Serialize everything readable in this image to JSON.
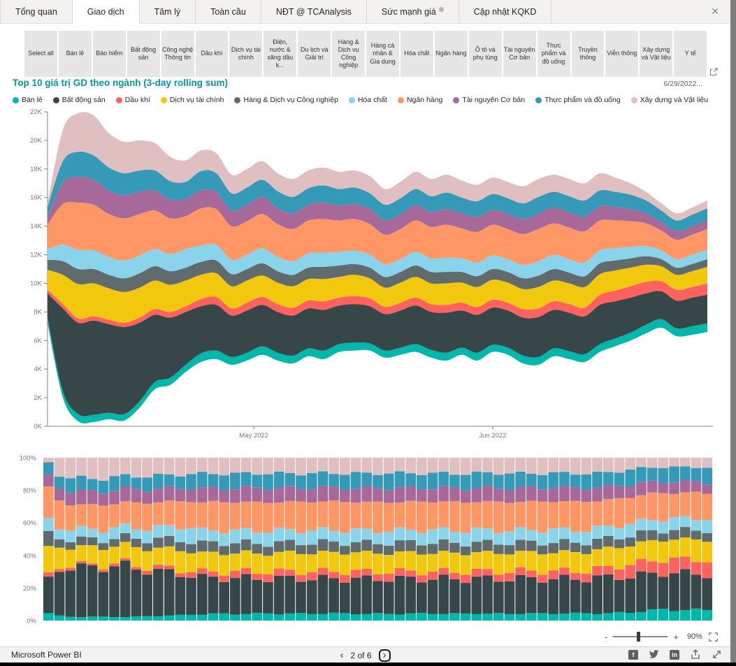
{
  "tabs": {
    "items": [
      {
        "label": "Tổng quan",
        "active": false
      },
      {
        "label": "Giao dịch",
        "active": true
      },
      {
        "label": "Tâm lý",
        "active": false
      },
      {
        "label": "Toàn cầu",
        "active": false
      },
      {
        "label": "NĐT @ TCAnalysis",
        "active": false
      },
      {
        "label": "Sức mạnh giá",
        "active": false,
        "has_info_icon": true
      },
      {
        "label": "Cập nhật KQKD",
        "active": false
      }
    ],
    "close_icon": "✕"
  },
  "filters": {
    "items": [
      "Select all",
      "Bán lẻ",
      "Bảo hiểm",
      "Bất động sản",
      "Công nghệ Thông tin",
      "Dầu khí",
      "Dịch vụ tài chính",
      "Điện, nước & xăng dầu k...",
      "Du lịch và Giải trí",
      "Hàng & Dịch vụ Công nghiệp",
      "Hàng cá nhân & Gia dụng",
      "Hóa chất",
      "Ngân hàng",
      "Ô tô và phụ tùng",
      "Tài nguyên Cơ bản",
      "Thực phẩm và đồ uống",
      "Truyền thông",
      "Viễn thông",
      "Xây dựng và Vật liệu",
      "Y tế"
    ]
  },
  "header": {
    "title": "Top 10 giá trị GD theo ngành (3-day rolling sum)",
    "title_color": "#01999B",
    "date_label": "6/29/2022..."
  },
  "chart_data": [
    {
      "type": "area",
      "subtype": "stream-stacked-area",
      "title": "Top 10 giá trị GD theo ngành (3-day rolling sum)",
      "unit": "K (thousands, as shown on y-axis)",
      "y_axis": {
        "min": 0,
        "max": 22,
        "tick_step": 2,
        "tick_suffix": "K"
      },
      "x_axis": {
        "ticks": [
          {
            "label": "May 2022",
            "fraction": 0.31
          },
          {
            "label": "Jun 2022",
            "fraction": 0.669
          }
        ]
      },
      "legend_position": "top",
      "grid": false,
      "baseline": [
        7.2,
        2.0,
        0.35,
        0.3,
        0.5,
        0.4,
        1.3,
        2.6,
        2.9,
        3.8,
        4.5,
        4.7,
        4.3,
        4.6,
        5.0,
        4.6,
        4.4,
        4.9,
        4.7,
        5.2,
        5.3,
        5.3,
        4.8,
        5.0,
        5.2,
        4.8,
        4.6,
        5.0,
        4.6,
        5.2,
        5.0,
        4.4,
        4.3,
        4.9,
        4.7,
        4.5,
        5.2,
        5.6,
        6.0,
        6.5,
        6.9,
        6.3,
        6.4,
        6.6
      ],
      "series": [
        {
          "name": "Bán lẻ",
          "color": "#01B8AA",
          "values": [
            0.4,
            0.45,
            0.5,
            0.5,
            0.45,
            0.45,
            0.45,
            0.5,
            0.5,
            0.5,
            0.6,
            0.6,
            0.55,
            0.55,
            0.6,
            0.55,
            0.55,
            0.55,
            0.6,
            0.55,
            0.55,
            0.5,
            0.5,
            0.5,
            0.55,
            0.55,
            0.55,
            0.5,
            0.55,
            0.5,
            0.5,
            0.55,
            0.55,
            0.55,
            0.55,
            0.55,
            0.55,
            0.55,
            0.55,
            0.6,
            0.6,
            0.55,
            0.6,
            0.6
          ]
        },
        {
          "name": "Bất động sản",
          "color": "#374649",
          "values": [
            1.7,
            5.8,
            6.4,
            6.6,
            6.2,
            6.1,
            5.5,
            4.7,
            4.2,
            3.7,
            3.3,
            3.2,
            2.9,
            2.95,
            2.9,
            2.85,
            2.8,
            2.8,
            2.85,
            2.7,
            2.7,
            2.6,
            2.55,
            2.6,
            2.7,
            2.65,
            2.8,
            2.6,
            2.65,
            2.6,
            2.6,
            2.65,
            2.8,
            2.7,
            2.7,
            2.65,
            2.75,
            2.6,
            2.45,
            2.2,
            1.95,
            1.95,
            2.0,
            2.0
          ]
        },
        {
          "name": "Dầu khí",
          "color": "#FD625E",
          "values": [
            0.25,
            0.3,
            0.3,
            0.3,
            0.3,
            0.3,
            0.35,
            0.4,
            0.4,
            0.4,
            0.5,
            0.55,
            0.5,
            0.55,
            0.55,
            0.55,
            0.55,
            0.55,
            0.6,
            0.55,
            0.55,
            0.55,
            0.5,
            0.55,
            0.55,
            0.55,
            0.55,
            0.55,
            0.55,
            0.55,
            0.55,
            0.6,
            0.6,
            0.6,
            0.6,
            0.6,
            0.7,
            0.75,
            0.8,
            0.8,
            0.7,
            0.75,
            0.75,
            0.8
          ]
        },
        {
          "name": "Dịch vụ tài chính",
          "color": "#F2C80F",
          "values": [
            1.4,
            2.05,
            2.4,
            2.3,
            2.2,
            2.15,
            2.1,
            2.0,
            1.9,
            1.8,
            1.7,
            1.65,
            1.55,
            1.55,
            1.5,
            1.5,
            1.5,
            1.5,
            1.55,
            1.45,
            1.5,
            1.4,
            1.35,
            1.4,
            1.45,
            1.45,
            1.5,
            1.4,
            1.4,
            1.4,
            1.4,
            1.4,
            1.5,
            1.45,
            1.45,
            1.45,
            1.45,
            1.4,
            1.3,
            1.2,
            1.05,
            1.05,
            1.1,
            1.15
          ]
        },
        {
          "name": "Hàng & Dịch vụ Công nghiệp",
          "color": "#5F6B6D",
          "values": [
            0.7,
            0.95,
            1.05,
            1.0,
            0.95,
            0.95,
            1.0,
            1.0,
            0.95,
            0.9,
            0.9,
            0.9,
            0.85,
            0.8,
            0.85,
            0.8,
            0.8,
            0.8,
            0.85,
            0.8,
            0.75,
            0.75,
            0.75,
            0.75,
            0.8,
            0.8,
            0.8,
            0.75,
            0.75,
            0.75,
            0.75,
            0.75,
            0.8,
            0.8,
            0.75,
            0.75,
            0.75,
            0.7,
            0.65,
            0.6,
            0.5,
            0.5,
            0.5,
            0.55
          ]
        },
        {
          "name": "Hóa chất",
          "color": "#8AD4EB",
          "values": [
            0.75,
            1.15,
            1.35,
            1.3,
            1.25,
            1.25,
            1.25,
            1.2,
            1.2,
            1.3,
            1.15,
            1.1,
            1.0,
            1.0,
            1.05,
            1.0,
            0.95,
            1.0,
            1.0,
            0.95,
            0.95,
            0.9,
            0.9,
            0.9,
            0.95,
            0.95,
            1.0,
            0.95,
            0.95,
            0.95,
            0.9,
            0.95,
            1.0,
            1.0,
            0.95,
            0.95,
            0.9,
            0.85,
            0.8,
            0.7,
            0.6,
            0.6,
            0.65,
            0.65
          ]
        },
        {
          "name": "Ngân hàng",
          "color": "#FE9666",
          "values": [
            1.7,
            2.85,
            3.3,
            3.2,
            3.0,
            2.95,
            2.9,
            2.7,
            2.5,
            2.3,
            2.6,
            2.5,
            2.35,
            2.35,
            2.4,
            2.3,
            2.25,
            2.3,
            2.35,
            2.2,
            2.2,
            2.15,
            2.05,
            2.1,
            2.2,
            2.2,
            2.3,
            2.1,
            2.15,
            2.15,
            2.1,
            2.15,
            2.25,
            2.2,
            2.2,
            2.2,
            2.1,
            1.95,
            1.8,
            1.6,
            1.4,
            1.35,
            1.4,
            1.45
          ]
        },
        {
          "name": "Tài nguyên Cơ bản",
          "color": "#A66999",
          "values": [
            0.55,
            1.5,
            1.8,
            1.75,
            1.65,
            1.6,
            1.55,
            1.4,
            1.3,
            1.2,
            1.25,
            1.2,
            1.1,
            1.15,
            1.2,
            1.1,
            1.1,
            1.1,
            1.15,
            1.05,
            1.05,
            1.05,
            1.0,
            1.05,
            1.05,
            1.05,
            1.1,
            1.05,
            1.05,
            1.05,
            1.05,
            1.05,
            1.1,
            1.1,
            1.05,
            1.05,
            1.0,
            0.95,
            0.85,
            0.7,
            0.6,
            0.6,
            0.6,
            0.6
          ]
        },
        {
          "name": "Thực phẩm và đồ uống",
          "color": "#3599B8",
          "values": [
            0.7,
            1.5,
            1.75,
            1.7,
            1.6,
            1.55,
            1.5,
            1.4,
            1.3,
            1.2,
            1.35,
            1.3,
            1.2,
            1.2,
            1.2,
            1.2,
            1.15,
            1.15,
            1.2,
            1.15,
            1.15,
            1.1,
            1.1,
            1.1,
            1.15,
            1.1,
            1.15,
            1.1,
            1.1,
            1.1,
            1.1,
            1.1,
            1.15,
            1.1,
            1.15,
            1.1,
            1.1,
            1.05,
            1.0,
            0.9,
            0.8,
            0.75,
            0.8,
            0.85
          ]
        },
        {
          "name": "Xây dựng và Vật liệu",
          "color": "#DFBFBF",
          "values": [
            0.25,
            2.2,
            2.7,
            2.8,
            2.4,
            2.2,
            2.1,
            1.9,
            1.7,
            1.5,
            1.45,
            1.4,
            1.3,
            1.3,
            1.3,
            1.25,
            1.25,
            1.25,
            1.25,
            1.2,
            1.2,
            1.2,
            1.1,
            1.15,
            1.2,
            1.2,
            1.25,
            1.2,
            1.15,
            1.15,
            1.15,
            1.2,
            1.25,
            1.2,
            1.2,
            1.2,
            1.2,
            1.0,
            0.8,
            0.6,
            0.5,
            0.5,
            0.5,
            0.55
          ]
        }
      ]
    },
    {
      "type": "bar",
      "subtype": "100-percent-stacked",
      "bar_count": 61,
      "y_axis": {
        "ticks": [
          "0%",
          "20%",
          "40%",
          "60%",
          "80%",
          "100%"
        ]
      },
      "note": "Daily sector share of trading value; same 10 series as chart 1, normalized to 100% per bar",
      "grid": false
    }
  ],
  "zoom_bar": {
    "minus": "-",
    "plus": "+",
    "zoom_level": "90%"
  },
  "footer": {
    "brand": "Microsoft Power BI",
    "prev_icon": "‹",
    "page_indicator": "2 of 6",
    "next_icon": "›",
    "facebook_glyph": "f",
    "linkedin_glyph": "in"
  }
}
